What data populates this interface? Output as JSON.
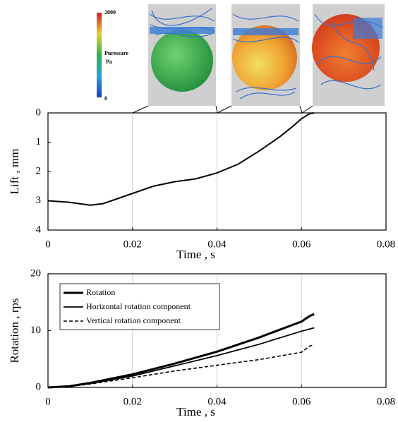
{
  "colorbar": {
    "title": "Puressure",
    "unit": "Pa",
    "ticks": [
      2000,
      0
    ]
  },
  "chart_data": [
    {
      "type": "line",
      "xlabel": "Time , s",
      "ylabel": "Lift , mm",
      "x": [
        0,
        0.005,
        0.01,
        0.013,
        0.015,
        0.02,
        0.025,
        0.03,
        0.035,
        0.04,
        0.045,
        0.05,
        0.055,
        0.058,
        0.06,
        0.062,
        0.063
      ],
      "values": [
        3.0,
        3.05,
        3.15,
        3.1,
        3.0,
        2.75,
        2.5,
        2.35,
        2.25,
        2.05,
        1.75,
        1.3,
        0.8,
        0.45,
        0.2,
        0.02,
        0
      ],
      "color": "#000000",
      "line_width": 2,
      "xlim": [
        0,
        0.08
      ],
      "xticks": [
        0,
        0.02,
        0.04,
        0.06,
        0.08
      ],
      "ylim": [
        4,
        0
      ],
      "yticks": [
        0,
        1,
        2,
        3,
        4
      ],
      "grid": "x"
    },
    {
      "type": "line",
      "xlabel": "Time , s",
      "ylabel": "Rotation , rps",
      "x": [
        0,
        0.005,
        0.01,
        0.02,
        0.03,
        0.04,
        0.05,
        0.06,
        0.062,
        0.063
      ],
      "series": [
        {
          "name": "Rotation",
          "color": "#000000",
          "line_width": 3,
          "line_style": "solid",
          "values": [
            0,
            0.2,
            0.8,
            2.3,
            4.2,
            6.3,
            8.8,
            11.6,
            12.6,
            12.9
          ]
        },
        {
          "name": "Horizontal rotation component",
          "color": "#000000",
          "line_width": 1.8,
          "line_style": "solid",
          "values": [
            0,
            0.15,
            0.7,
            2.0,
            3.8,
            5.6,
            7.6,
            9.9,
            10.3,
            10.5
          ]
        },
        {
          "name": "Vertical rotation component",
          "color": "#000000",
          "line_width": 1.6,
          "line_style": "dashed",
          "values": [
            0,
            0.15,
            0.6,
            1.7,
            2.9,
            3.9,
            4.9,
            6.2,
            7.3,
            7.5
          ]
        }
      ],
      "xlim": [
        0,
        0.08
      ],
      "xticks": [
        0,
        0.02,
        0.04,
        0.06,
        0.08
      ],
      "ylim": [
        0,
        20
      ],
      "yticks": [
        0,
        10,
        20
      ],
      "grid": "x",
      "legend": "upper left"
    }
  ]
}
